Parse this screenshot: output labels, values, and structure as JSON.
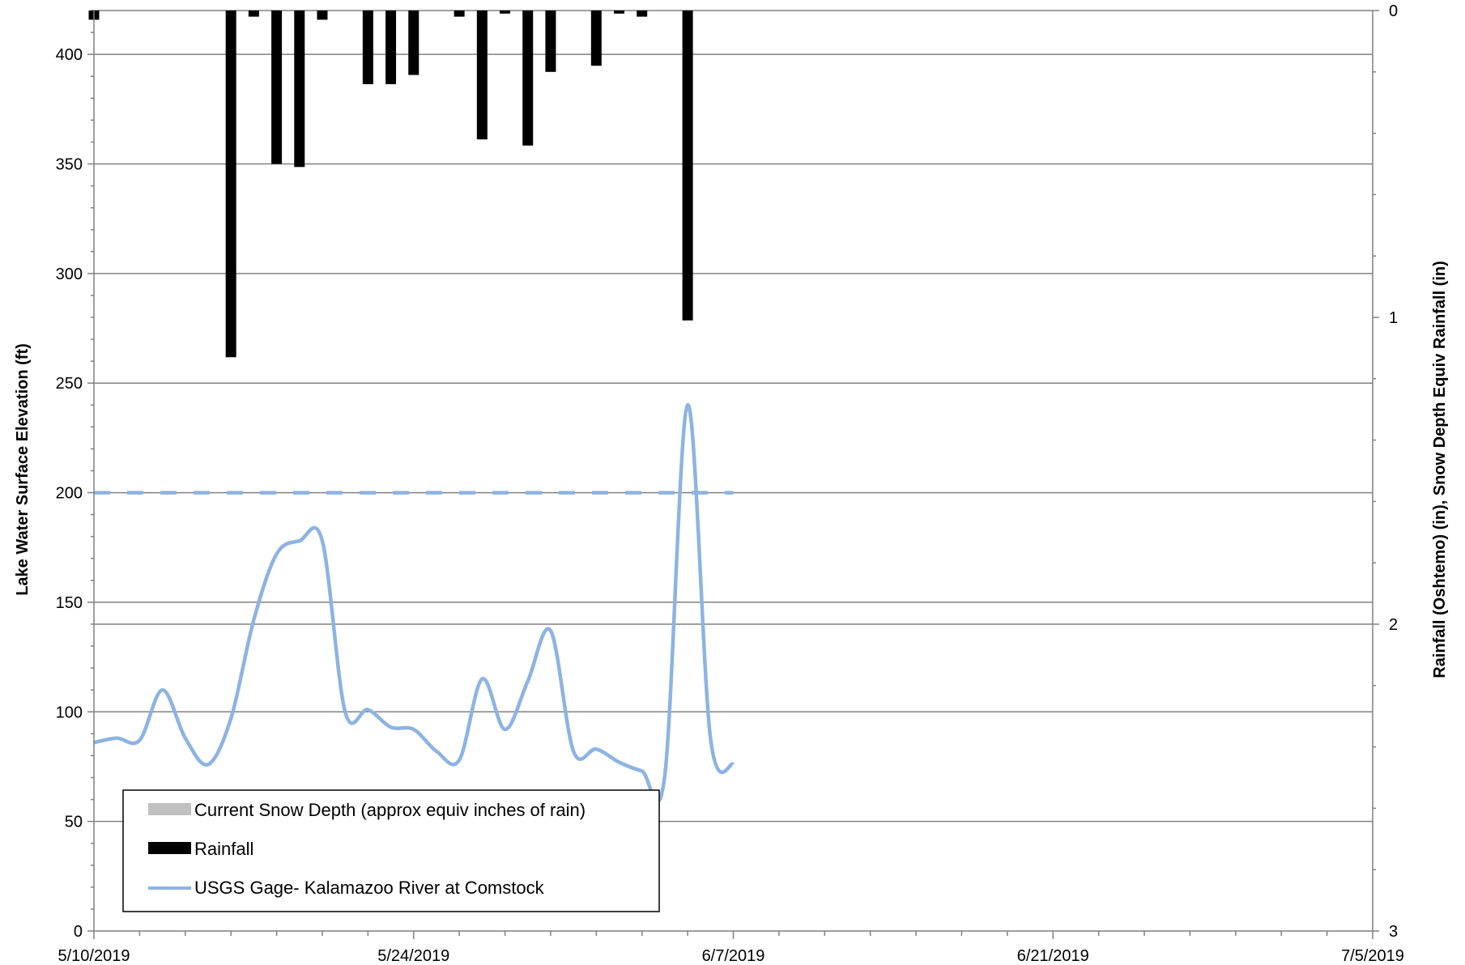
{
  "chart_data": {
    "type": "bar+line",
    "title": "",
    "x_axis": {
      "type": "date",
      "range": [
        "2019-05-10",
        "2019-07-05"
      ],
      "tick_labels": [
        "5/10/2019",
        "5/24/2019",
        "6/7/2019",
        "6/21/2019",
        "7/5/2019"
      ],
      "tick_dates": [
        "2019-05-10",
        "2019-05-24",
        "2019-06-07",
        "2019-06-21",
        "2019-07-05"
      ]
    },
    "y_left": {
      "label": "Lake Water Surface Elevation (ft)",
      "range": [
        0,
        420
      ],
      "tick_labels": [
        "0",
        "50",
        "100",
        "150",
        "200",
        "250",
        "300",
        "350",
        "400"
      ],
      "ticks": [
        0,
        50,
        100,
        150,
        200,
        250,
        300,
        350,
        400
      ]
    },
    "y_right": {
      "label": "Rainfall (Oshtemo) (in), Snow Depth Equiv Rainfall (in)",
      "range": [
        0,
        3
      ],
      "inverted": true,
      "tick_labels": [
        "0",
        "1",
        "2",
        "3"
      ],
      "ticks": [
        0,
        1,
        2,
        3
      ]
    },
    "grid": true,
    "series": [
      {
        "name": "Current Snow Depth (approx equiv  inches of rain)",
        "kind": "bar",
        "axis": "right",
        "color": "#c0c0c0",
        "points": []
      },
      {
        "name": "Rainfall",
        "kind": "bar",
        "axis": "right",
        "color": "#000000",
        "points": [
          {
            "x": "2019-05-10",
            "y": 0.03
          },
          {
            "x": "2019-05-16",
            "y": 1.13
          },
          {
            "x": "2019-05-17",
            "y": 0.02
          },
          {
            "x": "2019-05-18",
            "y": 0.5
          },
          {
            "x": "2019-05-19",
            "y": 0.51
          },
          {
            "x": "2019-05-20",
            "y": 0.03
          },
          {
            "x": "2019-05-22",
            "y": 0.24
          },
          {
            "x": "2019-05-23",
            "y": 0.24
          },
          {
            "x": "2019-05-24",
            "y": 0.21
          },
          {
            "x": "2019-05-26",
            "y": 0.02
          },
          {
            "x": "2019-05-27",
            "y": 0.42
          },
          {
            "x": "2019-05-28",
            "y": 0.01
          },
          {
            "x": "2019-05-29",
            "y": 0.44
          },
          {
            "x": "2019-05-30",
            "y": 0.2
          },
          {
            "x": "2019-06-01",
            "y": 0.18
          },
          {
            "x": "2019-06-02",
            "y": 0.01
          },
          {
            "x": "2019-06-03",
            "y": 0.02
          },
          {
            "x": "2019-06-05",
            "y": 1.01
          }
        ]
      },
      {
        "name": "USGS Gage- Kalamazoo River at Comstock",
        "kind": "line",
        "axis": "left",
        "color": "#8db3e2",
        "points": [
          {
            "x": "2019-05-10",
            "y": 86
          },
          {
            "x": "2019-05-11",
            "y": 88
          },
          {
            "x": "2019-05-12",
            "y": 87
          },
          {
            "x": "2019-05-13",
            "y": 110
          },
          {
            "x": "2019-05-14",
            "y": 88
          },
          {
            "x": "2019-05-15",
            "y": 76
          },
          {
            "x": "2019-05-16",
            "y": 97
          },
          {
            "x": "2019-05-17",
            "y": 142
          },
          {
            "x": "2019-05-18",
            "y": 172
          },
          {
            "x": "2019-05-19",
            "y": 178
          },
          {
            "x": "2019-05-20",
            "y": 178
          },
          {
            "x": "2019-05-21",
            "y": 100
          },
          {
            "x": "2019-05-22",
            "y": 101
          },
          {
            "x": "2019-05-23",
            "y": 93
          },
          {
            "x": "2019-05-24",
            "y": 92
          },
          {
            "x": "2019-05-25",
            "y": 82
          },
          {
            "x": "2019-05-26",
            "y": 78
          },
          {
            "x": "2019-05-27",
            "y": 115
          },
          {
            "x": "2019-05-28",
            "y": 92
          },
          {
            "x": "2019-05-29",
            "y": 114
          },
          {
            "x": "2019-05-30",
            "y": 137
          },
          {
            "x": "2019-05-31",
            "y": 82
          },
          {
            "x": "2019-06-01",
            "y": 83
          },
          {
            "x": "2019-06-02",
            "y": 77
          },
          {
            "x": "2019-06-03",
            "y": 73
          },
          {
            "x": "2019-06-04",
            "y": 71
          },
          {
            "x": "2019-06-05",
            "y": 240
          },
          {
            "x": "2019-06-06",
            "y": 88
          },
          {
            "x": "2019-06-07",
            "y": 76
          }
        ]
      },
      {
        "name": "",
        "kind": "dashed-line",
        "axis": "left",
        "color": "#8db3e2",
        "points": [
          {
            "x": "2019-05-10",
            "y": 200
          },
          {
            "x": "2019-06-07",
            "y": 200
          }
        ]
      },
      {
        "name": "",
        "kind": "reference-line",
        "axis": "left",
        "color": "#808080",
        "points": [
          {
            "x": "2019-05-10",
            "y": 140
          },
          {
            "x": "2019-07-05",
            "y": 140
          }
        ]
      }
    ],
    "legend": {
      "placement": "bottom-left",
      "entries": [
        "Current Snow Depth (approx equiv  inches of rain)",
        "Rainfall",
        "USGS Gage- Kalamazoo River at Comstock"
      ]
    }
  }
}
